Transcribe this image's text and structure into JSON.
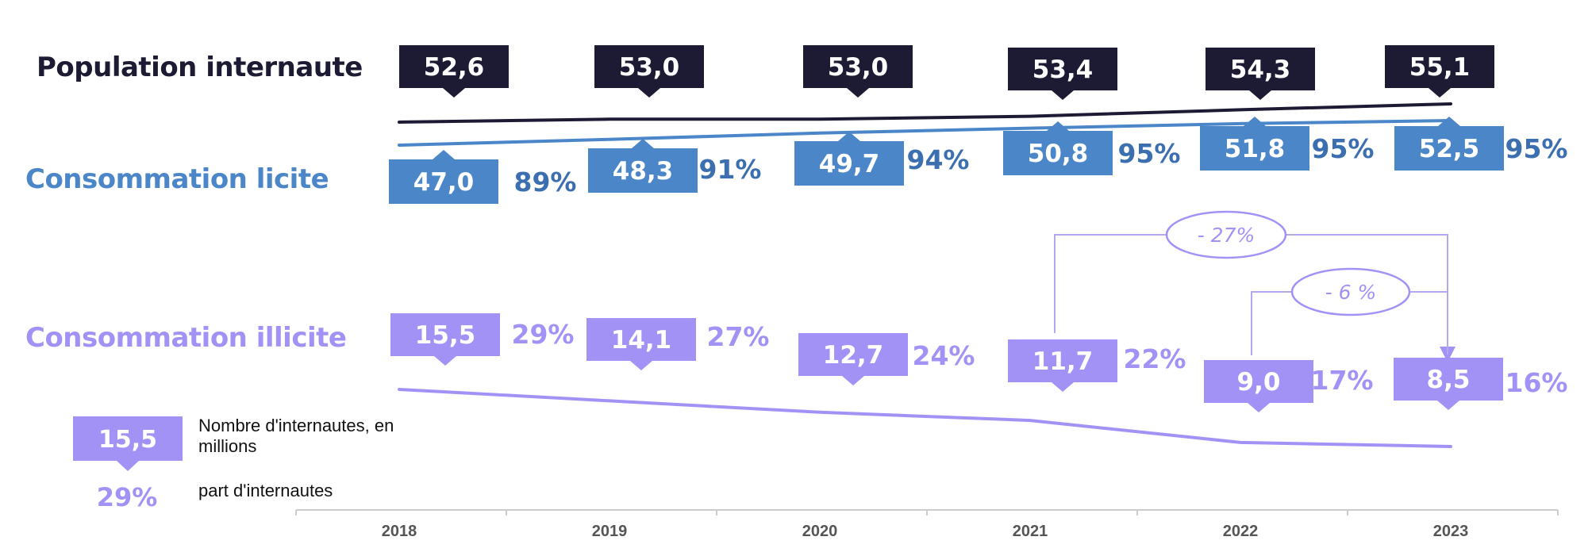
{
  "colors": {
    "population": "#1c1b33",
    "licite": "#4a86c8",
    "licite_pct": "#3c6fb0",
    "illicite": "#a292f5",
    "axis": "#cccccc"
  },
  "legend": {
    "sample_value": "15,5",
    "sample_value_label": "Nombre d'internautes, en millions",
    "sample_pct": "29%",
    "sample_pct_label": "part d'internautes"
  },
  "chart_data": {
    "type": "line",
    "categories": [
      "2018",
      "2019",
      "2020",
      "2021",
      "2022",
      "2023"
    ],
    "series": [
      {
        "name": "Population internaute",
        "values": [
          52.6,
          53.0,
          53.0,
          53.4,
          54.3,
          55.1
        ],
        "labels": [
          "52,6",
          "53,0",
          "53,0",
          "53,4",
          "54,3",
          "55,1"
        ]
      },
      {
        "name": "Consommation licite",
        "values": [
          47.0,
          48.3,
          49.7,
          50.8,
          51.8,
          52.5
        ],
        "labels": [
          "47,0",
          "48,3",
          "49,7",
          "50,8",
          "51,8",
          "52,5"
        ],
        "shares": [
          "89%",
          "91%",
          "94%",
          "95%",
          "95%",
          "95%"
        ]
      },
      {
        "name": "Consommation illicite",
        "values": [
          15.5,
          14.1,
          12.7,
          11.7,
          9.0,
          8.5
        ],
        "labels": [
          "15,5",
          "14,1",
          "12,7",
          "11,7",
          "9,0",
          "8,5"
        ],
        "shares": [
          "29%",
          "27%",
          "24%",
          "22%",
          "17%",
          "16%"
        ]
      }
    ],
    "annotations": [
      {
        "from": "2021",
        "to": "2023",
        "text": "- 27%"
      },
      {
        "from": "2022",
        "to": "2023",
        "text": "- 6 %"
      }
    ]
  }
}
